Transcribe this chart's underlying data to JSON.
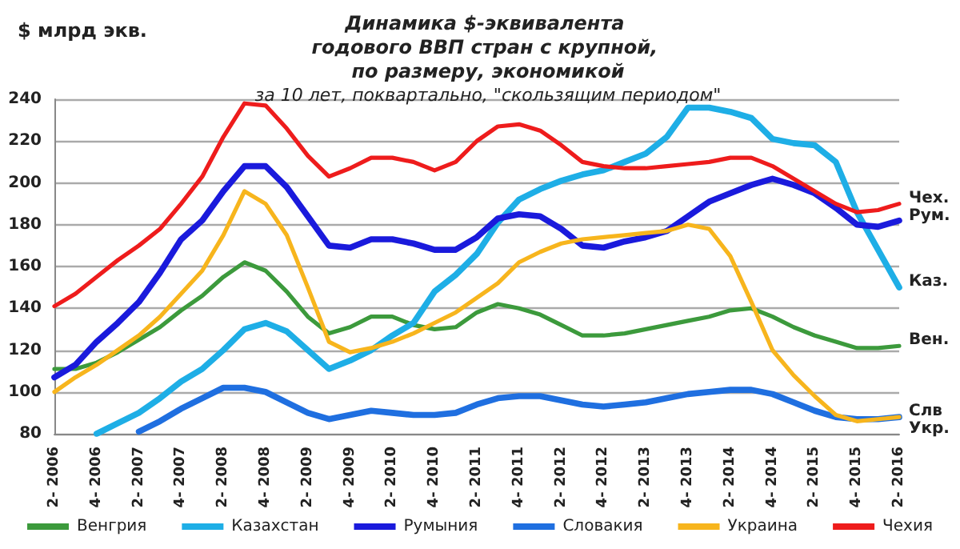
{
  "chart_data": {
    "type": "line",
    "title": "Динамика $-эквивалента годового ВВП стран с крупной, по размеру, экономикой",
    "subtitle": "за 10 лет, поквартально, \"скользящим периодом\"",
    "ylabel": "$ млрд экв.",
    "categories": [
      "2- 2006",
      null,
      "4- 2006",
      null,
      "2- 2007",
      null,
      "4- 2007",
      null,
      "2- 2008",
      null,
      "4- 2008",
      null,
      "2- 2009",
      null,
      "4- 2009",
      null,
      "2- 2010",
      null,
      "4- 2010",
      null,
      "2- 2011",
      null,
      "4- 2011",
      null,
      "2- 2012",
      null,
      "4- 2012",
      null,
      "2- 2013",
      null,
      "4- 2013",
      null,
      "2- 2014",
      null,
      "4- 2014",
      null,
      "2- 2015",
      null,
      "4- 2015",
      null,
      "2- 2016"
    ],
    "series": [
      {
        "name": "Венгрия",
        "color": "#3c9a3c",
        "values": [
          111,
          111,
          114,
          119,
          125,
          131,
          139,
          146,
          155,
          162,
          158,
          148,
          136,
          128,
          131,
          136,
          136,
          132,
          130,
          131,
          138,
          142,
          140,
          137,
          132,
          127,
          127,
          128,
          130,
          132,
          134,
          136,
          139,
          140,
          136,
          131,
          127,
          124,
          121,
          121,
          122
        ]
      },
      {
        "name": "Казахстан",
        "color": "#1eaee6",
        "values": [
          null,
          null,
          80,
          85,
          90,
          97,
          105,
          111,
          120,
          130,
          133,
          129,
          120,
          111,
          115,
          120,
          127,
          133,
          148,
          156,
          166,
          181,
          192,
          197,
          201,
          204,
          206,
          210,
          214,
          222,
          236,
          236,
          234,
          231,
          221,
          219,
          218,
          210,
          186,
          168,
          150
        ]
      },
      {
        "name": "Румыния",
        "color": "#1a1adc",
        "values": [
          107,
          113,
          124,
          133,
          143,
          157,
          173,
          182,
          196,
          208,
          208,
          198,
          184,
          170,
          169,
          173,
          173,
          171,
          168,
          168,
          174,
          183,
          185,
          184,
          178,
          170,
          169,
          172,
          174,
          177,
          184,
          191,
          195,
          199,
          202,
          199,
          195,
          188,
          180,
          179,
          182
        ]
      },
      {
        "name": "Словакия",
        "color": "#1f6fe0",
        "values": [
          null,
          null,
          null,
          null,
          81,
          86,
          92,
          97,
          102,
          102,
          100,
          95,
          90,
          87,
          89,
          91,
          90,
          89,
          89,
          90,
          94,
          97,
          98,
          98,
          96,
          94,
          93,
          94,
          95,
          97,
          99,
          100,
          101,
          101,
          99,
          95,
          91,
          88,
          87,
          87,
          88
        ]
      },
      {
        "name": "Украина",
        "color": "#f7b51d",
        "values": [
          100,
          107,
          113,
          120,
          127,
          136,
          147,
          158,
          175,
          196,
          190,
          175,
          150,
          124,
          119,
          121,
          124,
          128,
          133,
          138,
          145,
          152,
          162,
          167,
          171,
          173,
          174,
          175,
          176,
          177,
          180,
          178,
          165,
          143,
          120,
          108,
          98,
          89,
          86,
          87,
          88
        ]
      },
      {
        "name": "Чехия",
        "color": "#ee1c1c",
        "values": [
          141,
          147,
          155,
          163,
          170,
          178,
          190,
          203,
          222,
          238,
          237,
          226,
          213,
          203,
          207,
          212,
          212,
          210,
          206,
          210,
          220,
          227,
          228,
          225,
          218,
          210,
          208,
          207,
          207,
          208,
          209,
          210,
          212,
          212,
          208,
          202,
          196,
          190,
          186,
          187,
          190
        ]
      }
    ],
    "annotations": [
      {
        "text": "Чех.",
        "x": "2- 2016",
        "y": 190
      },
      {
        "text": "Рум.",
        "x": "2- 2016",
        "y": 182
      },
      {
        "text": "Каз.",
        "x": "2- 2016",
        "y": 150
      },
      {
        "text": "Вен.",
        "x": "2- 2016",
        "y": 122
      },
      {
        "text": "Слв",
        "x": "2- 2016",
        "y": 88
      },
      {
        "text": "Укр.",
        "x": "2- 2016",
        "y": 88
      }
    ],
    "ylim": [
      80,
      240
    ],
    "yticks": [
      80,
      100,
      120,
      140,
      160,
      180,
      200,
      220,
      240
    ],
    "grid": "y",
    "legend": "bottom",
    "marker": "none",
    "line_style": "solid"
  }
}
